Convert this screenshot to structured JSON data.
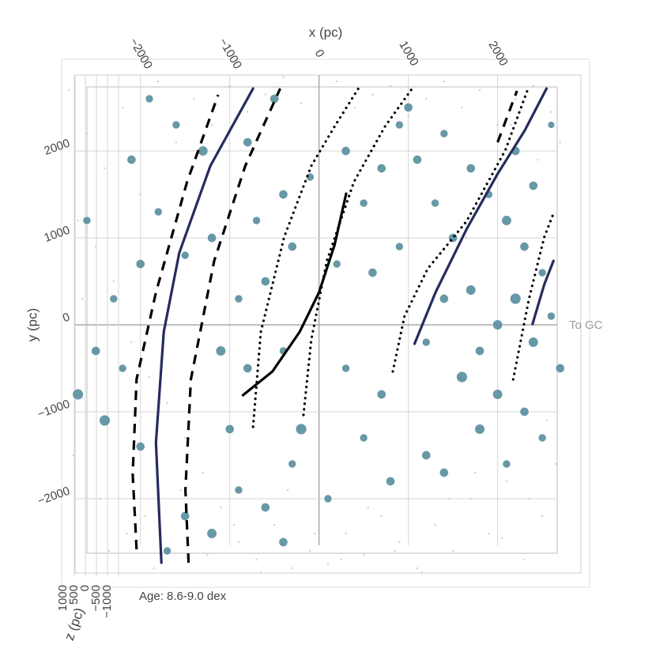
{
  "chart_data": {
    "type": "scatter",
    "x_label": "x (pc)",
    "y_label": "y (pc)",
    "z_label": "z (pc)",
    "annotations": [
      "To GC",
      "Age: 8.6-9.0 dex"
    ],
    "xlim": [
      -2900,
      2800
    ],
    "ylim": [
      -2900,
      2900
    ],
    "xticks": [
      {
        "value": -2000,
        "label": "−2000"
      },
      {
        "value": -1000,
        "label": "−1000"
      },
      0,
      1000,
      2000
    ],
    "yticks": [
      {
        "value": -2000,
        "label": "−2000"
      },
      {
        "value": -1000,
        "label": "−1000"
      },
      0,
      1000,
      2000
    ],
    "zticks": [
      1000,
      500,
      0,
      {
        "value": -500,
        "label": "−500"
      },
      {
        "value": -1000,
        "label": "−1000"
      }
    ],
    "grid": true,
    "series": [
      {
        "mode": "markers",
        "color": "#c8c8c8",
        "x": [
          -2800,
          -2600,
          -2400,
          -2200,
          -2000,
          -1800,
          -1600,
          -1400,
          -1200,
          -1000,
          -800,
          -600,
          -400,
          -200,
          0,
          200,
          400,
          600,
          800,
          1000,
          1200,
          1400,
          1600,
          1800,
          2000,
          2200,
          2400,
          2600,
          2700,
          -2700,
          -2500,
          -2300,
          -2100,
          -1900,
          -1700,
          -1500,
          -1300,
          -1100,
          -900,
          -700,
          -500,
          -300,
          -100,
          100,
          300,
          500,
          700,
          900,
          1100,
          1300,
          1500,
          1700,
          1900,
          2100,
          2300,
          2500,
          2650,
          -2750,
          -2450,
          -2150,
          -1850,
          -1550,
          -1250,
          -950,
          -650,
          -350,
          -50,
          250,
          550,
          850,
          1150,
          1450,
          1750,
          2050,
          2350,
          2550,
          -2650,
          -2350,
          -1950,
          1650,
          2150,
          2450
        ],
        "y": [
          2700,
          2200,
          1800,
          2500,
          1500,
          2800,
          2100,
          2600,
          2300,
          2750,
          2450,
          2650,
          2850,
          2550,
          2700,
          2800,
          2500,
          2650,
          2750,
          2400,
          2600,
          2800,
          2500,
          2700,
          2300,
          2600,
          2750,
          2450,
          2100,
          1200,
          900,
          500,
          -200,
          -600,
          -900,
          -1300,
          -1700,
          -2100,
          -2500,
          -2700,
          -2300,
          -2800,
          -2600,
          -2750,
          -2400,
          -2650,
          -2200,
          -2500,
          -2800,
          -2300,
          -2600,
          -2000,
          -2400,
          -1800,
          -2700,
          -2200,
          -1600,
          -1500,
          -2000,
          -2400,
          -2800,
          -1900,
          -2650,
          -2300,
          -2850,
          -1900,
          -2400,
          -2700,
          -2100,
          -2600,
          -2850,
          -2000,
          -1700,
          -2450,
          -2000,
          -1100,
          300,
          -2600,
          -2200,
          1000,
          2300,
          1900
        ],
        "size": [
          2,
          2,
          2,
          2,
          2,
          2,
          2,
          2,
          2,
          2,
          2,
          2,
          2,
          2,
          2,
          2,
          2,
          2,
          2,
          2,
          2,
          2,
          2,
          2,
          2,
          2,
          2,
          2,
          2,
          2,
          2,
          2,
          2,
          2,
          2,
          2,
          2,
          2,
          2,
          2,
          2,
          2,
          2,
          2,
          2,
          2,
          2,
          2,
          2,
          2,
          2,
          2,
          2,
          2,
          2,
          2,
          2,
          2,
          2,
          2,
          2,
          2,
          2,
          2,
          2,
          2,
          2,
          2,
          2,
          2,
          2,
          2,
          2,
          2,
          2,
          2,
          2,
          2,
          2,
          2,
          2,
          2
        ]
      },
      {
        "mode": "markers",
        "color": "#5f93a3",
        "x": [
          1700,
          1900,
          2100,
          2300,
          2500,
          2200,
          2000,
          1800,
          2400,
          2600,
          1600,
          2000,
          2300,
          2500,
          1800,
          1500,
          1300,
          1100,
          900,
          1400,
          2100,
          2400,
          2600,
          1700,
          1400,
          1200,
          2700,
          2200,
          700,
          500,
          300,
          -100,
          -400,
          -700,
          -300,
          200,
          600,
          900,
          -600,
          -900,
          -1200,
          -1500,
          -1100,
          -800,
          -400,
          300,
          700,
          -200,
          500,
          800,
          100,
          -600,
          -900,
          -1200,
          -1500,
          -400,
          -1700,
          -2000,
          -2400,
          -2200,
          -2500,
          -2300,
          -2000,
          -1800,
          -2100,
          -1300,
          -800,
          -1600,
          -1900,
          -500,
          1000,
          1400,
          -2600,
          -2700,
          -1000,
          1200,
          -300
        ],
        "y": [
          1800,
          1500,
          1200,
          900,
          600,
          300,
          0,
          -300,
          -200,
          100,
          -600,
          -800,
          -1000,
          -1300,
          -1200,
          1000,
          1400,
          1900,
          2300,
          -1700,
          -1600,
          1600,
          2300,
          400,
          300,
          -200,
          -500,
          2000,
          1800,
          1400,
          2000,
          1700,
          1500,
          1200,
          900,
          700,
          600,
          900,
          500,
          300,
          1000,
          800,
          -300,
          -500,
          -300,
          -500,
          -800,
          -1200,
          -1300,
          -1800,
          -2000,
          -2100,
          -1900,
          -2400,
          -2200,
          -2500,
          -2600,
          -1400,
          -1100,
          -500,
          -300,
          300,
          700,
          1300,
          1900,
          2000,
          2100,
          2300,
          2600,
          2600,
          2500,
          2200,
          1200,
          -800,
          -1200,
          -1500,
          -1600
        ],
        "size": [
          9,
          8,
          10,
          9,
          8,
          11,
          10,
          9,
          10,
          8,
          11,
          10,
          9,
          8,
          10,
          9,
          8,
          9,
          8,
          9,
          8,
          9,
          7,
          10,
          9,
          8,
          9,
          9,
          9,
          8,
          9,
          8,
          9,
          8,
          9,
          8,
          9,
          8,
          9,
          8,
          9,
          8,
          10,
          9,
          8,
          8,
          9,
          11,
          8,
          9,
          8,
          9,
          8,
          10,
          9,
          9,
          8,
          9,
          11,
          8,
          9,
          8,
          9,
          8,
          9,
          10,
          9,
          8,
          8,
          9,
          9,
          8,
          8,
          11,
          9,
          9,
          8
        ]
      },
      {
        "mode": "lines",
        "style": "solid",
        "color": "#262b5e",
        "x": [
          -1765,
          -1826,
          -1739,
          -1565,
          -1217,
          -739
        ],
        "y": [
          -2736,
          -1355,
          -82,
          827,
          1827,
          2718
        ]
      },
      {
        "mode": "lines",
        "style": "solid",
        "color": "#262b5e",
        "x": [
          1070,
          1304,
          1652,
          2000,
          2304,
          2548
        ],
        "y": [
          -218,
          373,
          1100,
          1736,
          2236,
          2718
        ]
      },
      {
        "mode": "lines",
        "style": "solid",
        "color": "#262b5e",
        "x": [
          2391,
          2522,
          2626
        ],
        "y": [
          9,
          464,
          736
        ]
      },
      {
        "mode": "lines",
        "style": "solid",
        "color": "#000000",
        "x": [
          -852,
          -522,
          -217,
          0,
          174,
          304
        ],
        "y": [
          -809,
          -536,
          -82,
          373,
          918,
          1509
        ]
      },
      {
        "mode": "lines",
        "style": "dashed",
        "color": "#000000",
        "x": [
          -2043,
          -2087,
          -2043,
          -1826,
          -1478,
          -1130
        ],
        "y": [
          -2582,
          -1718,
          -627,
          373,
          1645,
          2645
        ]
      },
      {
        "mode": "lines",
        "style": "dashed",
        "color": "#000000",
        "x": [
          -1461,
          -1496,
          -1435,
          -1174,
          -826,
          -435
        ],
        "y": [
          -2736,
          -1900,
          -627,
          736,
          1827,
          2718
        ]
      },
      {
        "mode": "lines",
        "style": "dashed",
        "color": "#000000",
        "x": [
          2000,
          2217
        ],
        "y": [
          2100,
          2691
        ]
      },
      {
        "mode": "lines",
        "style": "dotted",
        "color": "#000000",
        "x": [
          -739,
          -652,
          -391,
          -87,
          174,
          452
        ],
        "y": [
          -1173,
          -82,
          1009,
          1827,
          2282,
          2736
        ]
      },
      {
        "mode": "lines",
        "style": "dotted",
        "color": "#000000",
        "x": [
          -174,
          -87,
          87,
          391,
          739,
          1043
        ],
        "y": [
          -1036,
          -173,
          736,
          1645,
          2282,
          2718
        ]
      },
      {
        "mode": "lines",
        "style": "dotted",
        "color": "#000000",
        "x": [
          826,
          957,
          1217,
          1652,
          2087,
          2348
        ],
        "y": [
          -536,
          100,
          645,
          1191,
          2009,
          2736
        ]
      },
      {
        "mode": "lines",
        "style": "dotted",
        "color": "#000000",
        "x": [
          2174,
          2348,
          2522,
          2626
        ],
        "y": [
          -627,
          282,
          1009,
          1282
        ]
      }
    ]
  }
}
